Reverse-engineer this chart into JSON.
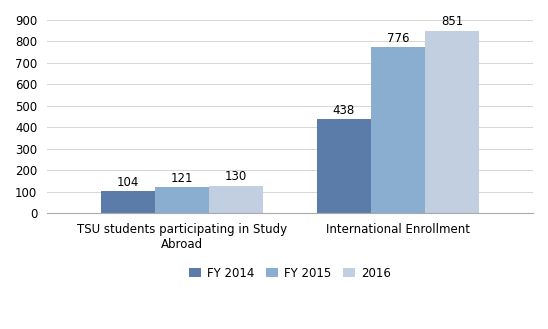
{
  "categories": [
    "TSU students participating in Study\nAbroad",
    "International Enrollment"
  ],
  "series": [
    {
      "label": "FY 2014",
      "values": [
        104,
        438
      ],
      "color": "#5b7ba8"
    },
    {
      "label": "FY 2015",
      "values": [
        121,
        776
      ],
      "color": "#8aaed0"
    },
    {
      "label": "2016",
      "values": [
        130,
        851
      ],
      "color": "#c2cfe0"
    }
  ],
  "ylim": [
    0,
    900
  ],
  "yticks": [
    0,
    100,
    200,
    300,
    400,
    500,
    600,
    700,
    800,
    900
  ],
  "bar_width": 0.55,
  "group_centers": [
    1.0,
    3.2
  ],
  "background_color": "#ffffff",
  "annotation_fontsize": 8.5,
  "legend_fontsize": 8.5,
  "tick_fontsize": 8.5,
  "label_fontsize": 8.5
}
